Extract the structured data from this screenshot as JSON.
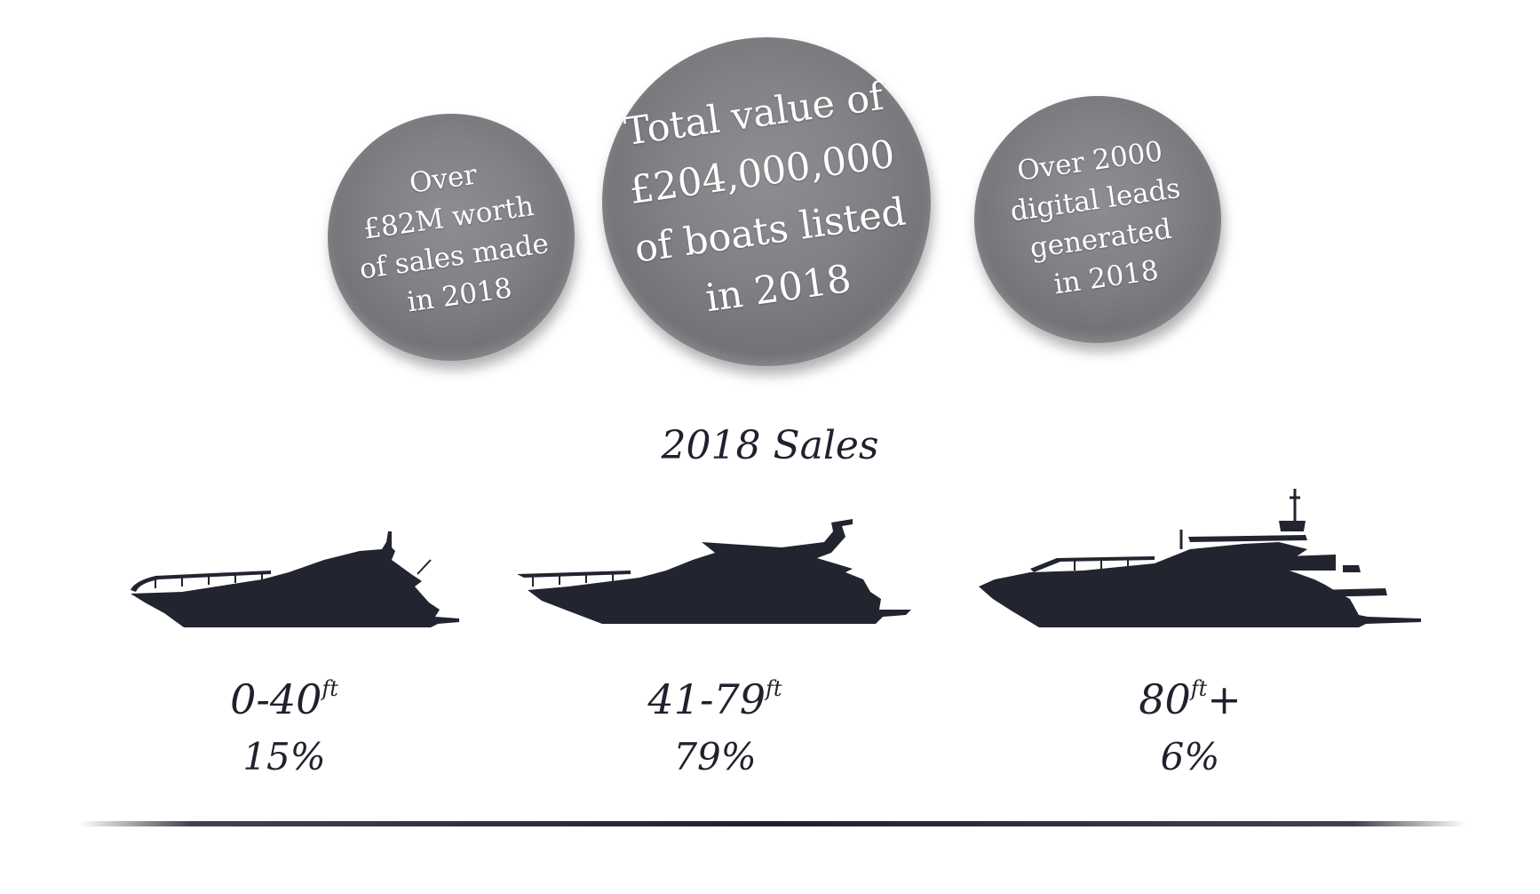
{
  "stats": {
    "left": {
      "line1": "Over",
      "line2": "£82M worth",
      "line3": "of sales made",
      "line4": "in 2018"
    },
    "center": {
      "line1": "Total value of",
      "line2": "£204,000,000",
      "line3": "of boats listed",
      "line4": "in 2018"
    },
    "right": {
      "line1": "Over 2000",
      "line2": "digital leads",
      "line3": "generated",
      "line4": "in 2018"
    }
  },
  "sales_heading": "2018 Sales",
  "categories": [
    {
      "range": "0-40",
      "unit": "ft",
      "suffix": "",
      "percent": "15%",
      "icon": "small-yacht-icon"
    },
    {
      "range": "41-79",
      "unit": "ft",
      "suffix": "",
      "percent": "79%",
      "icon": "medium-yacht-icon"
    },
    {
      "range": "80",
      "unit": "ft",
      "suffix": "+",
      "percent": "6%",
      "icon": "large-yacht-icon"
    }
  ],
  "colors": {
    "text": "#1f212c",
    "boat": "#22252f",
    "bubble": "#828286",
    "bubble_text": "#ffffff"
  }
}
